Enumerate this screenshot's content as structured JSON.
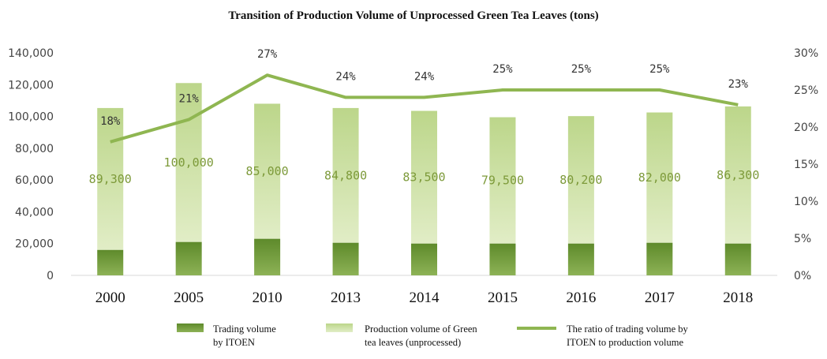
{
  "chart_data": {
    "type": "bar",
    "title": "Transition of Production Volume of Unprocessed Green Tea Leaves (tons)",
    "categories": [
      "2000",
      "2005",
      "2010",
      "2013",
      "2014",
      "2015",
      "2016",
      "2017",
      "2018"
    ],
    "series": [
      {
        "name": "Trading volume by ITOEN",
        "kind": "bar",
        "values": [
          16000,
          21000,
          23000,
          20500,
          20000,
          20000,
          20000,
          20500,
          20000
        ]
      },
      {
        "name": "Production volume of Green tea leaves (unprocessed)",
        "kind": "bar",
        "values": [
          89300,
          100000,
          85000,
          84800,
          83500,
          79500,
          80200,
          82000,
          86300
        ],
        "labels": [
          "89,300",
          "100,000",
          "85,000",
          "84,800",
          "83,500",
          "79,500",
          "80,200",
          "82,000",
          "86,300"
        ]
      },
      {
        "name": "The ratio of trading volume by ITOEN to production volume",
        "kind": "line",
        "axis": "right",
        "values": [
          18,
          21,
          27,
          24,
          24,
          25,
          25,
          25,
          23
        ],
        "labels": [
          "18%",
          "21%",
          "27%",
          "24%",
          "24%",
          "25%",
          "25%",
          "25%",
          "23%"
        ]
      }
    ],
    "stacked": true,
    "y_left": {
      "ylim": [
        0,
        140000
      ],
      "ticks": [
        0,
        20000,
        40000,
        60000,
        80000,
        100000,
        120000,
        140000
      ],
      "tick_labels": [
        "0",
        "20,000",
        "40,000",
        "60,000",
        "80,000",
        "100,000",
        "120,000",
        "140,000"
      ]
    },
    "y_right": {
      "ylim": [
        0,
        30
      ],
      "ticks": [
        0,
        5,
        10,
        15,
        20,
        25,
        30
      ],
      "tick_labels": [
        "0%",
        "5%",
        "10%",
        "15%",
        "20%",
        "25%",
        "30%"
      ]
    },
    "grid": false,
    "legend_position": "bottom",
    "legend": [
      {
        "lines": [
          "Trading volume",
          "by ITOEN"
        ]
      },
      {
        "lines": [
          "Production volume  of Green",
          "tea leaves (unprocessed)"
        ]
      },
      {
        "lines": [
          "The ratio of trading volume by",
          "ITOEN to production volume"
        ]
      }
    ],
    "colors": {
      "trading_bar": "#6f9534",
      "production_bar": "#cfe1aa",
      "ratio_line": "#8fb651",
      "bar_label": "#7d9a3a"
    }
  }
}
